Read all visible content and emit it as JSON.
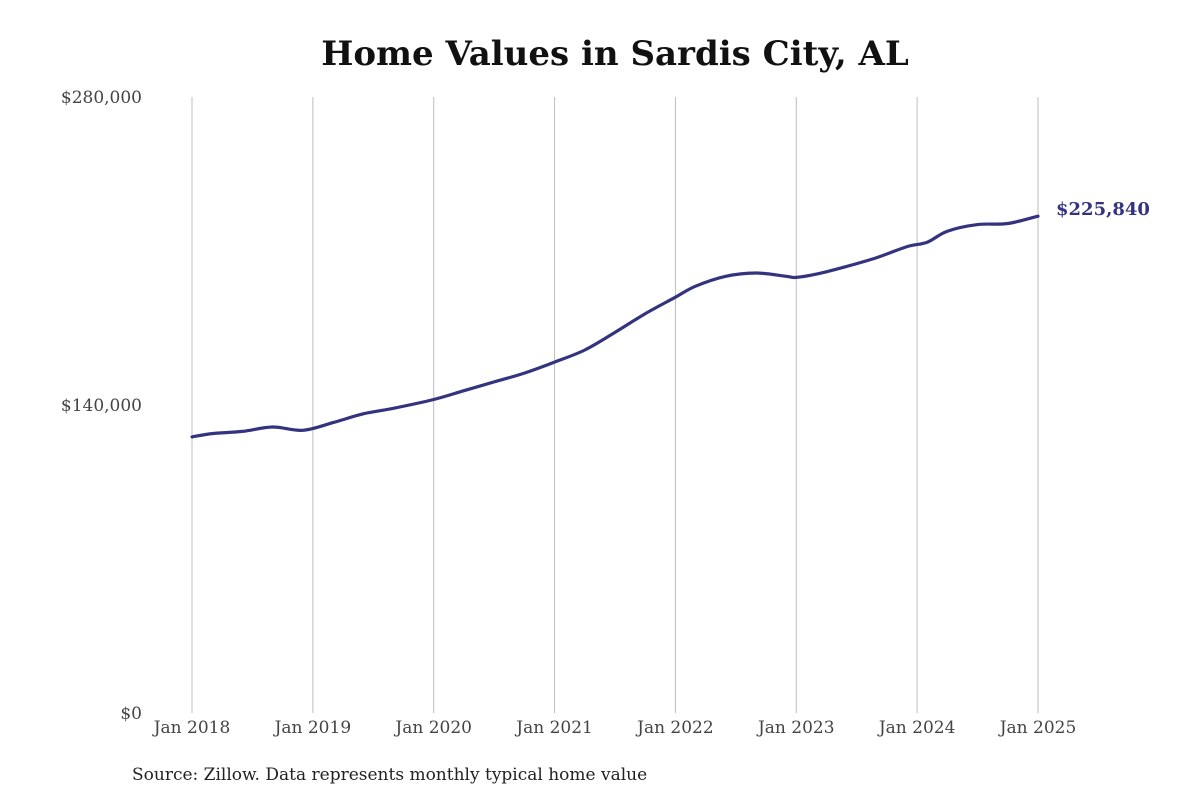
{
  "title": "Home Values in Sardis City, AL",
  "source": "Source: Zillow. Data represents monthly typical home value",
  "colors": {
    "line": "#33337f",
    "grid": "#bdbdbd",
    "tick_text": "#444444"
  },
  "chart_data": {
    "type": "line",
    "title": "Home Values in Sardis City, AL",
    "xlabel": "",
    "ylabel": "",
    "ylim": [
      0,
      280000
    ],
    "y_ticks": [
      0,
      140000,
      280000
    ],
    "y_tick_labels": [
      "$0",
      "$140,000",
      "$280,000"
    ],
    "x_ticks": [
      "2018-01",
      "2019-01",
      "2020-01",
      "2021-01",
      "2022-01",
      "2023-01",
      "2024-01",
      "2025-01"
    ],
    "x_tick_labels": [
      "Jan 2018",
      "Jan 2019",
      "Jan 2020",
      "Jan 2021",
      "Jan 2022",
      "Jan 2023",
      "Jan 2024",
      "Jan 2025"
    ],
    "grid": "vertical",
    "end_label": "$225,840",
    "series": [
      {
        "x": [
          "2018-01",
          "2018-03",
          "2018-06",
          "2018-09",
          "2018-12",
          "2019-03",
          "2019-06",
          "2019-09",
          "2020-01",
          "2020-04",
          "2020-07",
          "2020-10",
          "2021-01",
          "2021-04",
          "2021-07",
          "2021-10",
          "2022-01",
          "2022-03",
          "2022-06",
          "2022-09",
          "2022-12",
          "2023-01",
          "2023-03",
          "2023-06",
          "2023-09",
          "2023-12",
          "2024-02",
          "2024-04",
          "2024-07",
          "2024-10",
          "2025-01"
        ],
        "y": [
          125500,
          127000,
          128000,
          130000,
          128500,
          132000,
          136000,
          138500,
          142500,
          146500,
          150500,
          154500,
          159500,
          165000,
          173000,
          181500,
          189000,
          194000,
          198500,
          200000,
          198500,
          198000,
          199500,
          203000,
          207000,
          212000,
          214000,
          219000,
          222000,
          222500,
          225840
        ]
      }
    ]
  }
}
